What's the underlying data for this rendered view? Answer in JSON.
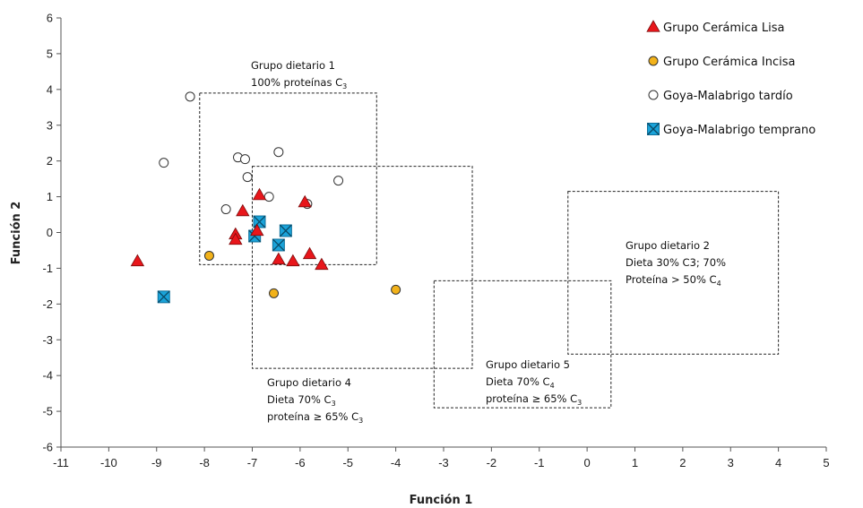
{
  "chart_data": {
    "type": "scatter",
    "xlabel": "Función 1",
    "ylabel": "Función 2",
    "xlim": [
      -11,
      5
    ],
    "ylim": [
      -6,
      6
    ],
    "xticks": [
      -11,
      -10,
      -9,
      -8,
      -7,
      -6,
      -5,
      -4,
      -3,
      -2,
      -1,
      0,
      1,
      2,
      3,
      4,
      5
    ],
    "yticks": [
      -6,
      -5,
      -4,
      -3,
      -2,
      -1,
      0,
      1,
      2,
      3,
      4,
      5,
      6
    ],
    "grid": false,
    "legend_position": "top-right",
    "series": [
      {
        "name": "Grupo Cerámica Lisa",
        "marker": "triangle",
        "color": "#e8161b",
        "points": [
          {
            "x": -9.4,
            "y": -0.8
          },
          {
            "x": -7.2,
            "y": 0.6
          },
          {
            "x": -7.35,
            "y": -0.05
          },
          {
            "x": -7.35,
            "y": -0.2
          },
          {
            "x": -6.85,
            "y": 1.05
          },
          {
            "x": -6.9,
            "y": 0.05
          },
          {
            "x": -6.45,
            "y": -0.75
          },
          {
            "x": -6.15,
            "y": -0.8
          },
          {
            "x": -5.9,
            "y": 0.85
          },
          {
            "x": -5.8,
            "y": -0.6
          },
          {
            "x": -5.55,
            "y": -0.9
          }
        ]
      },
      {
        "name": "Grupo Cerámica Incisa",
        "marker": "circle",
        "color": "#f2b21a",
        "points": [
          {
            "x": -7.9,
            "y": -0.65
          },
          {
            "x": -6.55,
            "y": -1.7
          },
          {
            "x": -4.0,
            "y": -1.6
          }
        ]
      },
      {
        "name": "Goya-Malabrigo tardío",
        "marker": "circle",
        "color": "#ffffff",
        "points": [
          {
            "x": -8.85,
            "y": 1.95
          },
          {
            "x": -8.3,
            "y": 3.8
          },
          {
            "x": -7.55,
            "y": 0.65
          },
          {
            "x": -7.3,
            "y": 2.1
          },
          {
            "x": -7.15,
            "y": 2.05
          },
          {
            "x": -7.1,
            "y": 1.55
          },
          {
            "x": -6.65,
            "y": 1.0
          },
          {
            "x": -6.45,
            "y": 2.25
          },
          {
            "x": -5.85,
            "y": 0.8
          },
          {
            "x": -5.2,
            "y": 1.45
          }
        ]
      },
      {
        "name": "Goya-Malabrigo temprano",
        "marker": "box-x",
        "color": "#1aa3d9",
        "points": [
          {
            "x": -8.85,
            "y": -1.8
          },
          {
            "x": -6.85,
            "y": 0.3
          },
          {
            "x": -6.95,
            "y": -0.1
          },
          {
            "x": -6.45,
            "y": -0.35
          },
          {
            "x": -6.3,
            "y": 0.05
          }
        ]
      }
    ],
    "regions": [
      {
        "name": "Grupo dietario 1",
        "x_range": [
          -8.1,
          -4.4
        ],
        "y_range": [
          -0.9,
          3.9
        ],
        "lines": [
          {
            "parts": [
              {
                "t": "Grupo dietario 1"
              }
            ]
          },
          {
            "parts": [
              {
                "t": "100% proteínas C"
              },
              {
                "t": "3",
                "sub": true
              }
            ]
          }
        ]
      },
      {
        "name": "Grupo dietario 4",
        "x_range": [
          -7.0,
          -2.4
        ],
        "y_range": [
          -3.8,
          1.85
        ],
        "lines": [
          {
            "parts": [
              {
                "t": "Grupo dietario 4"
              }
            ]
          },
          {
            "parts": [
              {
                "t": "Dieta 70% C"
              },
              {
                "t": "3",
                "sub": true
              }
            ]
          },
          {
            "parts": [
              {
                "t": "proteína ≥ 65% C"
              },
              {
                "t": "3",
                "sub": true
              }
            ]
          }
        ]
      },
      {
        "name": "Grupo dietario 5",
        "x_range": [
          -3.2,
          0.5
        ],
        "y_range": [
          -4.9,
          -1.35
        ],
        "lines": [
          {
            "parts": [
              {
                "t": "Grupo dietario 5"
              }
            ]
          },
          {
            "parts": [
              {
                "t": "Dieta 70% C"
              },
              {
                "t": "4",
                "sub": true
              }
            ]
          },
          {
            "parts": [
              {
                "t": "proteína ≥ 65% C"
              },
              {
                "t": "3",
                "sub": true
              }
            ]
          }
        ]
      },
      {
        "name": "Grupo dietario 2",
        "x_range": [
          -0.4,
          4.0
        ],
        "y_range": [
          -3.4,
          1.15
        ],
        "lines": [
          {
            "parts": [
              {
                "t": "Grupo dietario 2"
              }
            ]
          },
          {
            "parts": [
              {
                "t": "Dieta 30% C3; 70%"
              }
            ]
          },
          {
            "parts": [
              {
                "t": "Proteína > 50% C"
              },
              {
                "t": "4",
                "sub": true
              }
            ]
          }
        ]
      }
    ]
  }
}
